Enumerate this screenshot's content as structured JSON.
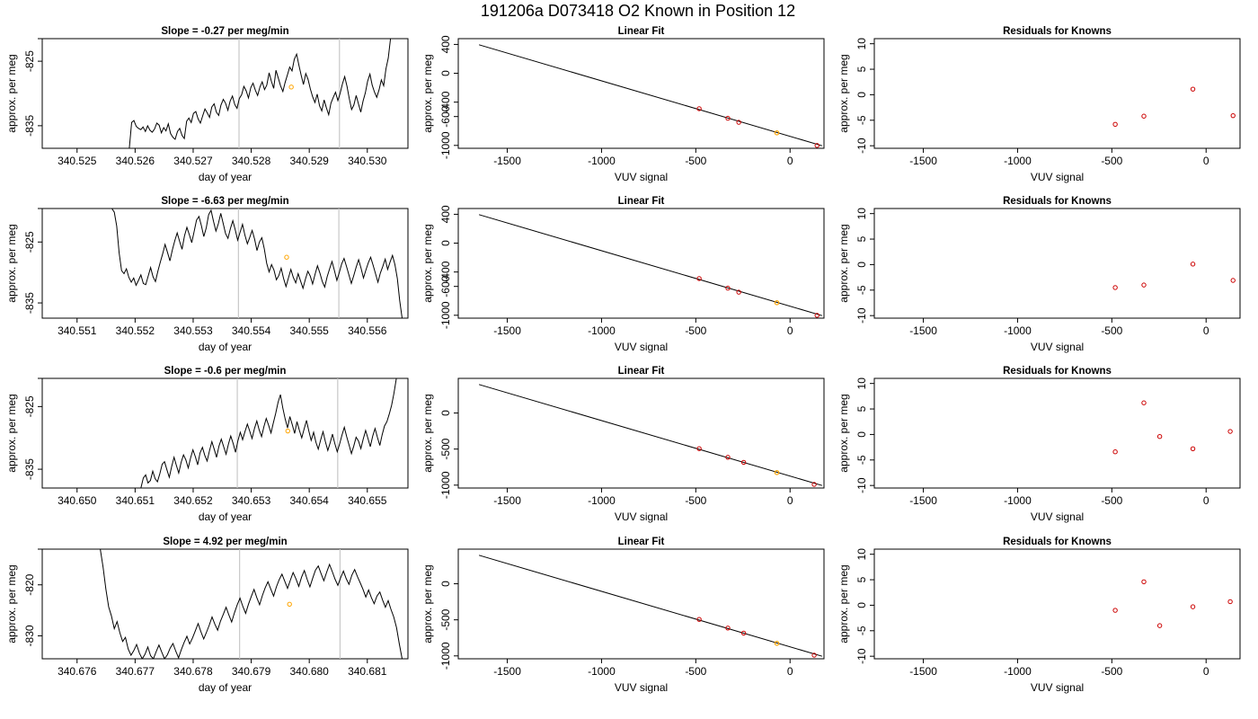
{
  "title": "191206a     D073418   O2 Known in Position  12",
  "colors": {
    "line": "#000000",
    "current": "#ffa500",
    "known": "#cc0000",
    "marker_line": "#c8c8c8"
  },
  "chart_data": [
    {
      "row": 1,
      "panel": "time",
      "type": "line",
      "title": "Slope =  -0.27  per meg/min",
      "xlabel": "day of year",
      "ylabel": "approx. per meg",
      "xlim": [
        340.5244,
        340.5307
      ],
      "ylim": [
        -838.5,
        -821.5
      ],
      "xticks": [
        "340.525",
        "340.526",
        "340.527",
        "340.528",
        "340.529",
        "340.530"
      ],
      "yticks": [
        "-825",
        "-835"
      ],
      "series_start": 340.5259,
      "series_end": 340.5304,
      "series_y": [
        -838.5,
        -834.5,
        -834.2,
        -835.1,
        -835.4,
        -835.6,
        -835.2,
        -835.9,
        -835.0,
        -835.7,
        -836.0,
        -835.5,
        -834.6,
        -834.9,
        -836.1,
        -835.3,
        -835.8,
        -834.7,
        -836.2,
        -836.8,
        -837.1,
        -835.9,
        -835.4,
        -836.5,
        -837.0,
        -834.3,
        -833.8,
        -834.5,
        -833.1,
        -832.8,
        -833.9,
        -834.6,
        -833.5,
        -832.4,
        -833.0,
        -833.7,
        -832.1,
        -831.6,
        -832.9,
        -833.4,
        -831.8,
        -830.9,
        -831.5,
        -832.6,
        -831.2,
        -830.4,
        -831.7,
        -832.3,
        -830.8,
        -830.2,
        -828.9,
        -829.6,
        -830.7,
        -829.1,
        -828.4,
        -829.5,
        -830.3,
        -829.0,
        -828.2,
        -829.4,
        -828.7,
        -826.8,
        -828.1,
        -829.2,
        -826.4,
        -827.6,
        -828.8,
        -829.7,
        -828.3,
        -827.1,
        -825.9,
        -826.5,
        -824.7,
        -823.9,
        -825.6,
        -827.2,
        -828.6,
        -826.9,
        -827.8,
        -829.3,
        -830.5,
        -831.4,
        -830.1,
        -831.9,
        -832.7,
        -831.0,
        -832.2,
        -833.3,
        -831.5,
        -830.6,
        -829.8,
        -831.1,
        -830.0,
        -828.5,
        -827.4,
        -828.9,
        -830.8,
        -832.5,
        -831.8,
        -830.3,
        -831.6,
        -832.9,
        -831.2,
        -829.9,
        -828.1,
        -827.0,
        -828.7,
        -829.8,
        -830.6,
        -829.4,
        -827.9,
        -828.8,
        -826.2,
        -824.5,
        -821.5
      ],
      "vlines": [
        340.52779,
        340.52952
      ],
      "current_point": {
        "x": 340.52869,
        "y": -829.0
      },
      "tick_y_data": [
        -821.5
      ]
    },
    {
      "row": 1,
      "panel": "fit",
      "type": "scatter",
      "title": "Linear Fit",
      "xlabel": "VUV signal",
      "ylabel": "approx. per meg",
      "xlim": [
        -1760,
        180
      ],
      "ylim": [
        -1040,
        480
      ],
      "xticks": [
        -1500,
        -1000,
        -500,
        0
      ],
      "yticks": [
        -1000,
        -600,
        -400,
        0,
        400
      ],
      "fit_line": [
        [
          -1650,
          395
        ],
        [
          170,
          -1005
        ]
      ],
      "knowns": [
        [
          -482,
          -491
        ],
        [
          -330,
          -624
        ],
        [
          -272,
          -680
        ],
        [
          143,
          -1001
        ]
      ],
      "current": [
        [
          -70,
          -826
        ]
      ]
    },
    {
      "row": 1,
      "panel": "resid",
      "type": "scatter",
      "title": "Residuals for Knowns",
      "xlabel": "VUV signal",
      "ylabel": "approx. per meg",
      "xlim": [
        -1760,
        180
      ],
      "ylim": [
        -10.5,
        11
      ],
      "xticks": [
        -1500,
        -1000,
        -500,
        0
      ],
      "yticks": [
        -10,
        -5,
        0,
        5,
        10
      ],
      "knowns": [
        [
          -482,
          -5.8
        ],
        [
          -330,
          -4.2
        ],
        [
          -70,
          1.1
        ],
        [
          143,
          -4.1
        ]
      ]
    },
    {
      "row": 2,
      "panel": "time",
      "type": "line",
      "title": "Slope =  -6.63  per meg/min",
      "xlabel": "day of year",
      "ylabel": "approx. per meg",
      "xlim": [
        340.5504,
        340.5567
      ],
      "ylim": [
        -837.5,
        -819.5
      ],
      "xticks": [
        "340.551",
        "340.552",
        "340.553",
        "340.554",
        "340.555",
        "340.556"
      ],
      "yticks": [
        "-825",
        "-835"
      ],
      "series_start": 340.5516,
      "series_end": 340.5566,
      "series_y": [
        -819.5,
        -820.1,
        -822.4,
        -826.8,
        -829.7,
        -830.2,
        -829.4,
        -830.8,
        -831.6,
        -830.9,
        -832.1,
        -831.3,
        -830.4,
        -831.8,
        -832.0,
        -830.6,
        -829.2,
        -830.7,
        -831.5,
        -829.8,
        -828.3,
        -826.9,
        -825.4,
        -826.7,
        -828.1,
        -826.3,
        -824.8,
        -823.5,
        -824.9,
        -826.2,
        -824.0,
        -822.6,
        -823.8,
        -825.1,
        -823.3,
        -821.4,
        -820.8,
        -822.3,
        -824.1,
        -822.7,
        -820.5,
        -819.8,
        -821.6,
        -823.2,
        -822.0,
        -820.3,
        -821.9,
        -823.6,
        -824.4,
        -822.8,
        -821.5,
        -823.0,
        -824.7,
        -823.4,
        -822.1,
        -823.9,
        -825.3,
        -824.2,
        -823.1,
        -824.5,
        -826.4,
        -825.0,
        -824.3,
        -826.1,
        -828.5,
        -829.9,
        -828.7,
        -829.6,
        -831.2,
        -830.5,
        -829.3,
        -831.0,
        -832.3,
        -830.9,
        -829.5,
        -830.8,
        -831.7,
        -830.2,
        -831.4,
        -832.6,
        -831.1,
        -829.8,
        -830.6,
        -831.9,
        -830.3,
        -828.9,
        -830.1,
        -831.5,
        -832.4,
        -830.7,
        -829.4,
        -828.2,
        -829.7,
        -831.3,
        -830.0,
        -828.6,
        -827.7,
        -829.0,
        -830.4,
        -831.8,
        -830.5,
        -829.1,
        -827.9,
        -829.3,
        -830.9,
        -829.6,
        -828.4,
        -827.5,
        -828.8,
        -830.2,
        -831.6,
        -830.1,
        -829.0,
        -827.8,
        -829.5,
        -828.3,
        -827.2,
        -828.7,
        -831.0,
        -834.6,
        -837.5
      ],
      "vlines": [
        340.55378,
        340.55551
      ],
      "current_point": {
        "x": 340.55461,
        "y": -827.5
      },
      "tick_y_data": [
        -819.5
      ]
    },
    {
      "row": 2,
      "panel": "fit",
      "type": "scatter",
      "title": "Linear Fit",
      "xlabel": "VUV signal",
      "ylabel": "approx. per meg",
      "xlim": [
        -1760,
        180
      ],
      "ylim": [
        -1040,
        480
      ],
      "xticks": [
        -1500,
        -1000,
        -500,
        0
      ],
      "yticks": [
        -1000,
        -600,
        -400,
        0,
        400
      ],
      "fit_line": [
        [
          -1650,
          395
        ],
        [
          170,
          -1005
        ]
      ],
      "knowns": [
        [
          -482,
          -491
        ],
        [
          -330,
          -624
        ],
        [
          -272,
          -680
        ],
        [
          143,
          -1001
        ]
      ],
      "current": [
        [
          -70,
          -826
        ]
      ]
    },
    {
      "row": 2,
      "panel": "resid",
      "type": "scatter",
      "title": "Residuals for Knowns",
      "xlabel": "VUV signal",
      "ylabel": "approx. per meg",
      "xlim": [
        -1760,
        180
      ],
      "ylim": [
        -10.5,
        11
      ],
      "xticks": [
        -1500,
        -1000,
        -500,
        0
      ],
      "yticks": [
        -10,
        -5,
        0,
        5,
        10
      ],
      "knowns": [
        [
          -482,
          -4.5
        ],
        [
          -330,
          -4.0
        ],
        [
          -70,
          0.1
        ],
        [
          143,
          -3.1
        ]
      ]
    },
    {
      "row": 3,
      "panel": "time",
      "type": "line",
      "title": "Slope =  -0.6  per meg/min",
      "xlabel": "day of year",
      "ylabel": "approx. per meg",
      "xlim": [
        340.6494,
        340.6557
      ],
      "ylim": [
        -838.0,
        -820.5
      ],
      "xticks": [
        "340.650",
        "340.651",
        "340.652",
        "340.653",
        "340.654",
        "340.655"
      ],
      "yticks": [
        "-825",
        "-835"
      ],
      "series_start": 340.6511,
      "series_end": 340.6555,
      "series_y": [
        -838.0,
        -836.4,
        -835.9,
        -837.2,
        -836.8,
        -835.3,
        -836.5,
        -837.0,
        -835.7,
        -834.2,
        -833.8,
        -835.1,
        -836.3,
        -834.6,
        -833.1,
        -834.4,
        -835.6,
        -833.9,
        -832.7,
        -833.5,
        -834.8,
        -833.2,
        -831.9,
        -833.0,
        -834.3,
        -832.4,
        -831.5,
        -832.8,
        -833.7,
        -832.0,
        -830.6,
        -831.8,
        -833.1,
        -831.3,
        -830.2,
        -831.4,
        -832.6,
        -831.0,
        -829.7,
        -830.9,
        -832.3,
        -830.5,
        -829.1,
        -830.3,
        -829.0,
        -827.8,
        -828.9,
        -830.1,
        -828.5,
        -827.3,
        -828.7,
        -829.8,
        -828.2,
        -826.9,
        -828.0,
        -829.2,
        -827.6,
        -826.1,
        -824.3,
        -823.1,
        -825.2,
        -827.0,
        -828.4,
        -826.6,
        -827.9,
        -829.3,
        -827.4,
        -828.8,
        -830.0,
        -828.6,
        -827.2,
        -828.9,
        -830.4,
        -829.1,
        -830.7,
        -831.8,
        -830.3,
        -829.0,
        -830.6,
        -832.0,
        -830.8,
        -829.4,
        -830.9,
        -832.2,
        -831.0,
        -829.6,
        -828.3,
        -829.8,
        -831.1,
        -832.5,
        -831.3,
        -829.9,
        -830.5,
        -831.7,
        -830.2,
        -828.8,
        -830.1,
        -831.4,
        -829.7,
        -828.5,
        -829.9,
        -831.2,
        -829.5,
        -828.1,
        -827.4,
        -826.2,
        -824.8,
        -822.9,
        -820.5
      ],
      "vlines": [
        340.65276,
        340.65449
      ],
      "current_point": {
        "x": 340.65363,
        "y": -828.9
      },
      "tick_y_data": [
        -820.5
      ]
    },
    {
      "row": 3,
      "panel": "fit",
      "type": "scatter",
      "title": "Linear Fit",
      "xlabel": "VUV signal",
      "ylabel": "approx. per meg",
      "xlim": [
        -1760,
        180
      ],
      "ylim": [
        -1040,
        480
      ],
      "xticks": [
        -1500,
        -1000,
        -500,
        0
      ],
      "yticks": [
        -1000,
        -500,
        0
      ],
      "fit_line": [
        [
          -1650,
          395
        ],
        [
          170,
          -1005
        ]
      ],
      "knowns": [
        [
          -482,
          -494
        ],
        [
          -330,
          -614
        ],
        [
          -246,
          -684
        ],
        [
          128,
          -990
        ]
      ],
      "current": [
        [
          -70,
          -826
        ]
      ]
    },
    {
      "row": 3,
      "panel": "resid",
      "type": "scatter",
      "title": "Residuals for Knowns",
      "xlabel": "VUV signal",
      "ylabel": "approx. per meg",
      "xlim": [
        -1760,
        180
      ],
      "ylim": [
        -10.5,
        11
      ],
      "xticks": [
        -1500,
        -1000,
        -500,
        0
      ],
      "yticks": [
        -10,
        -5,
        0,
        5,
        10
      ],
      "knowns": [
        [
          -482,
          -3.4
        ],
        [
          -330,
          6.2
        ],
        [
          -246,
          -0.4
        ],
        [
          -70,
          -2.8
        ],
        [
          128,
          0.6
        ]
      ]
    },
    {
      "row": 4,
      "panel": "time",
      "type": "line",
      "title": "Slope =  4.92  per meg/min",
      "xlabel": "day of year",
      "ylabel": "approx. per meg",
      "xlim": [
        340.6754,
        340.6817
      ],
      "ylim": [
        -834.5,
        -813.0
      ],
      "xticks": [
        "340.676",
        "340.677",
        "340.678",
        "340.679",
        "340.680",
        "340.681"
      ],
      "yticks": [
        "-820",
        "-830"
      ],
      "series_start": 340.6764,
      "series_end": 340.6816,
      "series_y": [
        -813.0,
        -816.5,
        -820.8,
        -824.3,
        -826.1,
        -828.6,
        -827.2,
        -829.4,
        -831.1,
        -830.3,
        -832.6,
        -833.8,
        -832.9,
        -831.7,
        -833.4,
        -834.5,
        -833.6,
        -832.2,
        -833.9,
        -834.5,
        -833.1,
        -831.8,
        -833.2,
        -834.5,
        -833.7,
        -832.4,
        -831.5,
        -833.0,
        -834.3,
        -832.7,
        -831.3,
        -830.1,
        -831.6,
        -830.4,
        -829.0,
        -827.6,
        -829.2,
        -830.6,
        -829.3,
        -827.9,
        -826.3,
        -827.7,
        -828.9,
        -827.1,
        -825.8,
        -824.4,
        -825.9,
        -827.3,
        -825.5,
        -823.9,
        -822.6,
        -824.2,
        -825.6,
        -823.8,
        -822.3,
        -820.9,
        -822.5,
        -823.9,
        -822.1,
        -820.6,
        -819.4,
        -820.8,
        -822.2,
        -820.4,
        -819.0,
        -817.9,
        -819.3,
        -820.7,
        -819.1,
        -817.6,
        -818.8,
        -820.3,
        -818.5,
        -817.2,
        -818.9,
        -820.4,
        -818.7,
        -817.1,
        -816.3,
        -817.8,
        -819.2,
        -817.5,
        -816.0,
        -817.4,
        -818.9,
        -820.1,
        -818.6,
        -817.3,
        -818.8,
        -819.9,
        -818.1,
        -817.0,
        -818.4,
        -819.6,
        -820.9,
        -822.4,
        -821.0,
        -822.5,
        -823.7,
        -822.2,
        -821.4,
        -823.0,
        -824.4,
        -823.1,
        -824.8,
        -826.3,
        -828.4,
        -831.6,
        -834.5
      ],
      "vlines": [
        340.6788,
        340.68053
      ],
      "current_point": {
        "x": 340.67966,
        "y": -823.8
      },
      "tick_y_data": [
        -813.0
      ]
    },
    {
      "row": 4,
      "panel": "fit",
      "type": "scatter",
      "title": "Linear Fit",
      "xlabel": "VUV signal",
      "ylabel": "approx. per meg",
      "xlim": [
        -1760,
        180
      ],
      "ylim": [
        -1040,
        480
      ],
      "xticks": [
        -1500,
        -1000,
        -500,
        0
      ],
      "yticks": [
        -1000,
        -500,
        0
      ],
      "fit_line": [
        [
          -1650,
          395
        ],
        [
          170,
          -1005
        ]
      ],
      "knowns": [
        [
          -482,
          -494
        ],
        [
          -330,
          -614
        ],
        [
          -246,
          -684
        ],
        [
          128,
          -990
        ]
      ],
      "current": [
        [
          -70,
          -826
        ]
      ]
    },
    {
      "row": 4,
      "panel": "resid",
      "type": "scatter",
      "title": "Residuals for Knowns",
      "xlabel": "VUV signal",
      "ylabel": "approx. per meg",
      "xlim": [
        -1760,
        180
      ],
      "ylim": [
        -10.5,
        11
      ],
      "xticks": [
        -1500,
        -1000,
        -500,
        0
      ],
      "yticks": [
        -10,
        -5,
        0,
        5,
        10
      ],
      "knowns": [
        [
          -482,
          -1.0
        ],
        [
          -330,
          4.6
        ],
        [
          -246,
          -4.0
        ],
        [
          -70,
          -0.3
        ],
        [
          128,
          0.7
        ]
      ]
    }
  ]
}
